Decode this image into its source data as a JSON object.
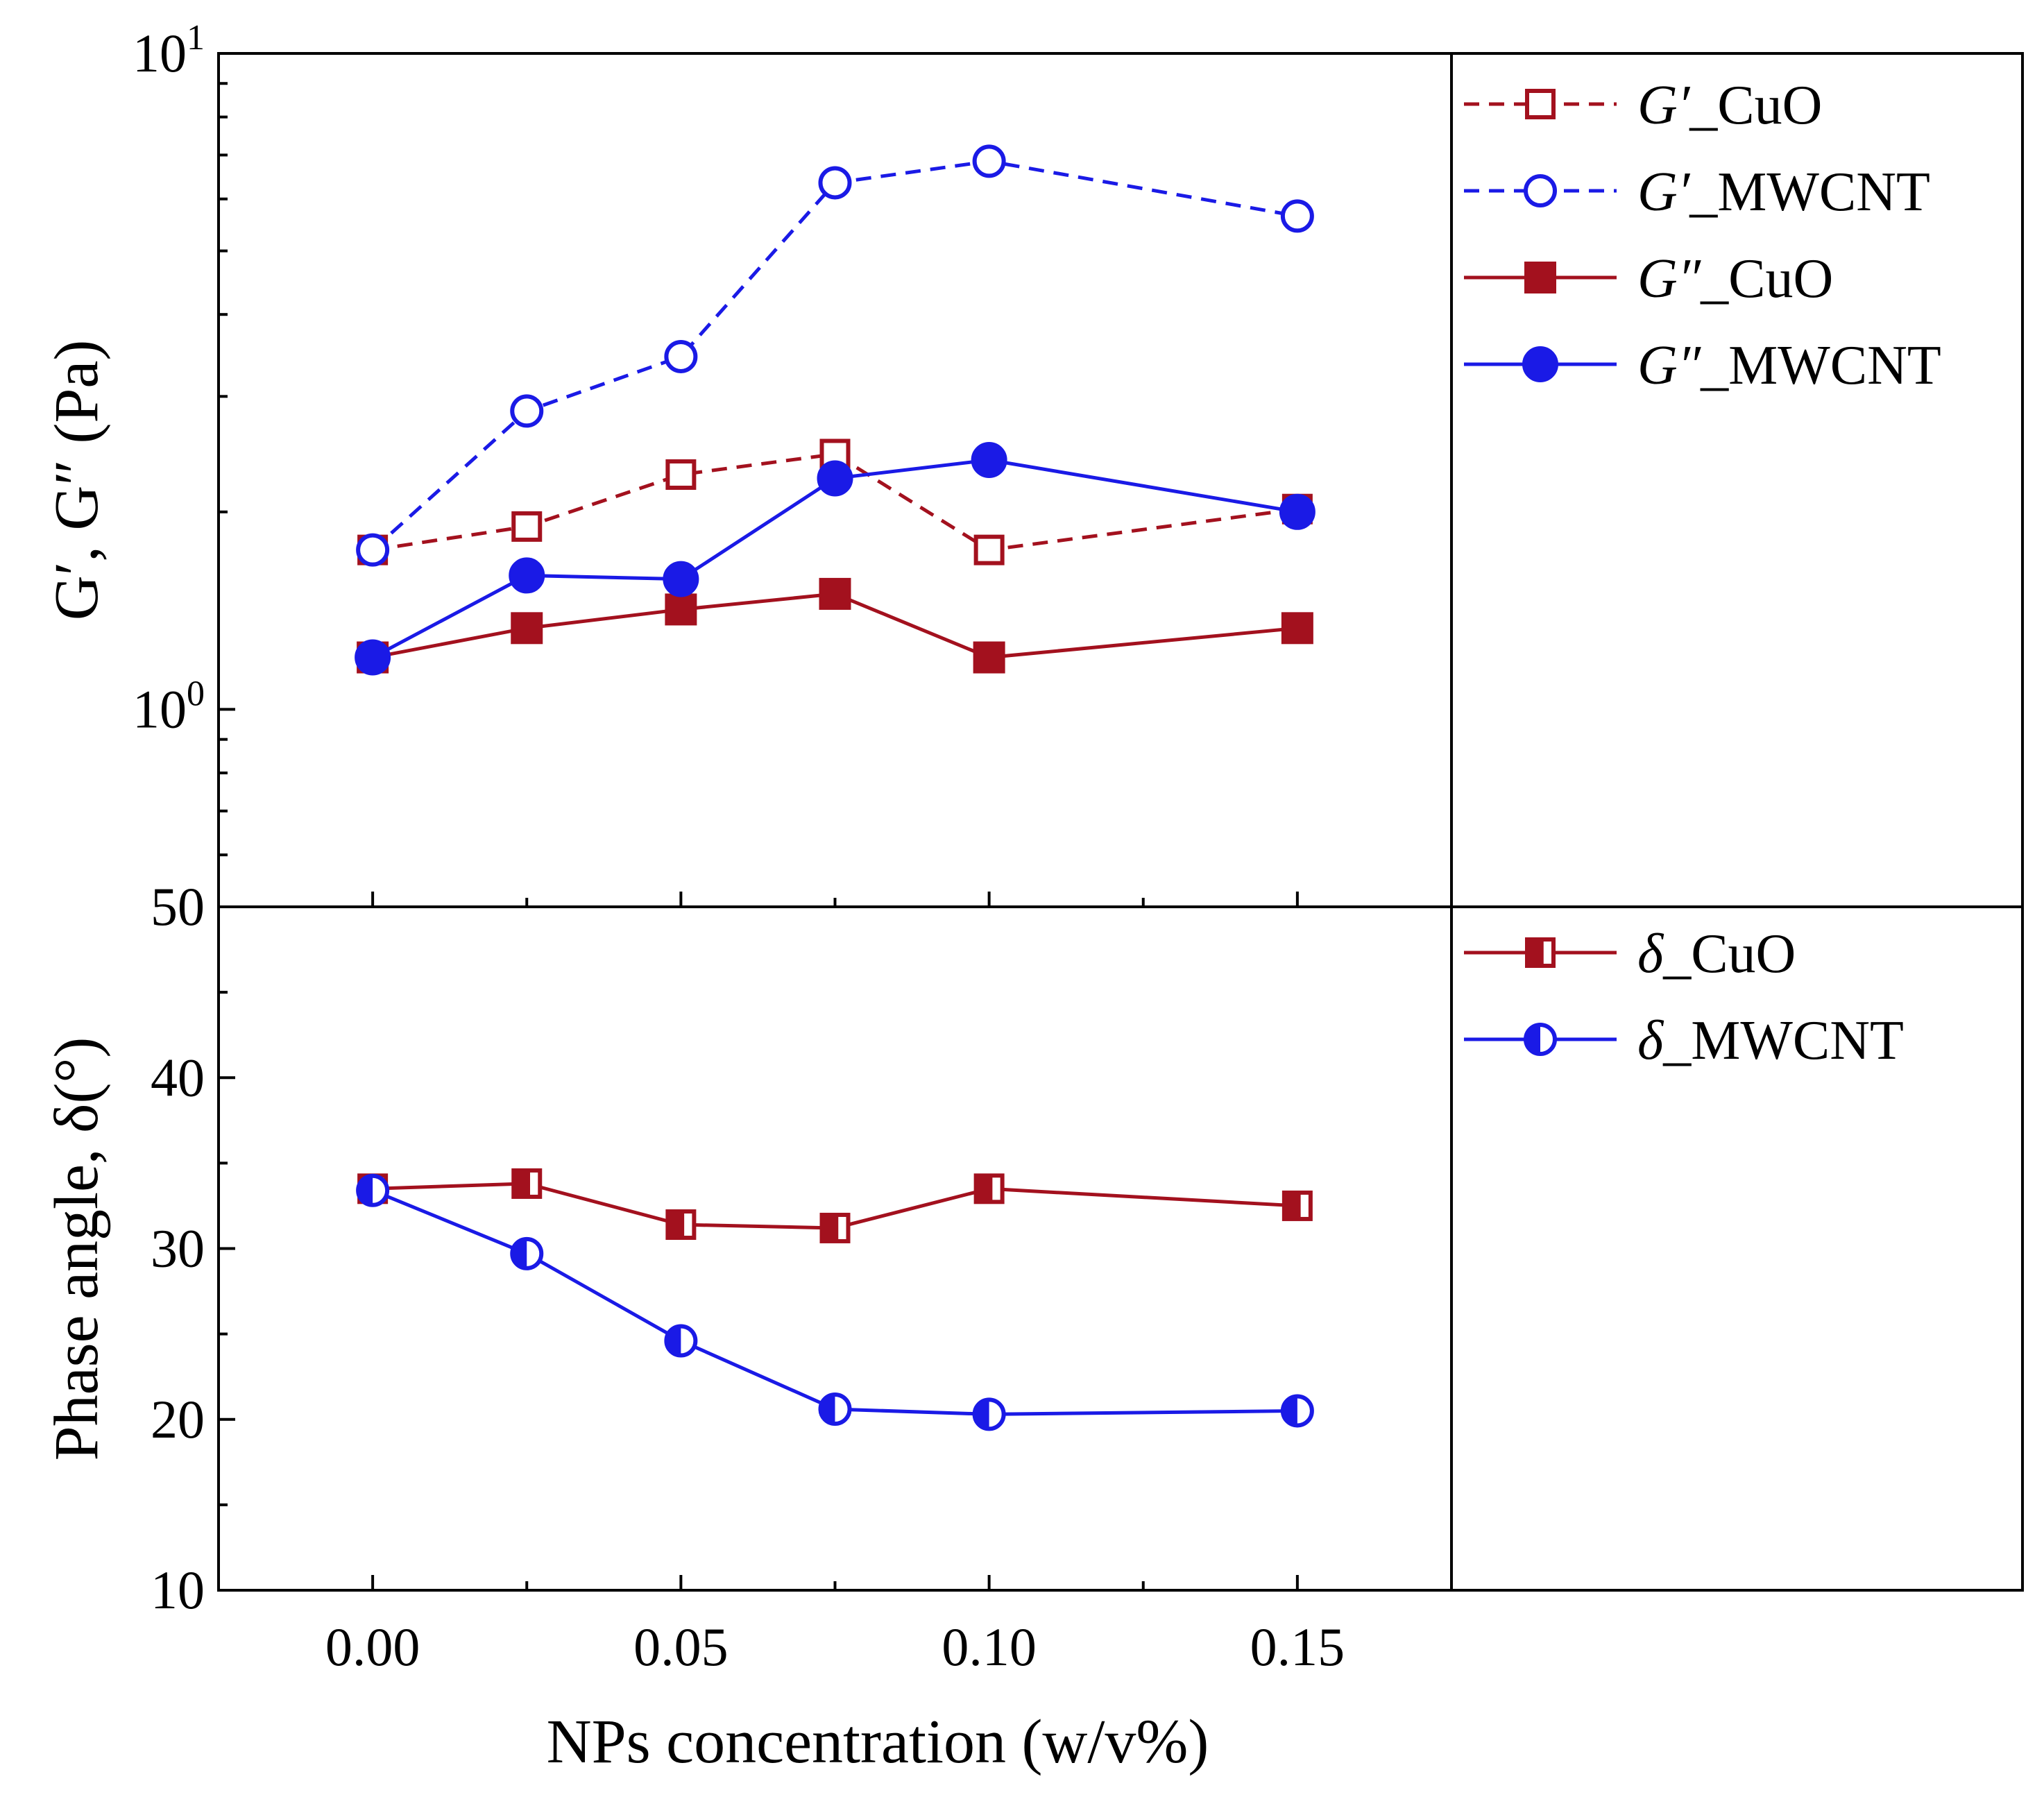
{
  "chart_data": [
    {
      "id": "moduli",
      "type": "line",
      "yscale": "log",
      "ylabel": "G′, G″ (Pa)",
      "ylim": [
        0.5,
        10
      ],
      "yticks": [
        {
          "value": 1,
          "base": "10",
          "exp": "0"
        },
        {
          "value": 10,
          "base": "10",
          "exp": "1"
        }
      ],
      "x": [
        0.0,
        0.025,
        0.05,
        0.075,
        0.1,
        0.15
      ],
      "series": [
        {
          "key": "gp_cuo",
          "name": "G′_CuO",
          "symbol": "G′",
          "suffix": "_CuO",
          "color": "#a3111e",
          "dash": true,
          "marker": "square-open",
          "values": [
            1.75,
            1.9,
            2.28,
            2.45,
            1.75,
            2.02
          ]
        },
        {
          "key": "gp_mwcnt",
          "name": "G′_MWCNT",
          "symbol": "G′",
          "suffix": "_MWCNT",
          "color": "#1a1ae6",
          "dash": true,
          "marker": "circle-open",
          "values": [
            1.75,
            2.85,
            3.45,
            6.35,
            6.85,
            5.65
          ]
        },
        {
          "key": "gpp_cuo",
          "name": "G″_CuO",
          "symbol": "G″",
          "suffix": "_CuO",
          "color": "#a3111e",
          "dash": false,
          "marker": "square-filled",
          "values": [
            1.2,
            1.33,
            1.42,
            1.5,
            1.2,
            1.33
          ]
        },
        {
          "key": "gpp_mwcnt",
          "name": "G″_MWCNT",
          "symbol": "G″",
          "suffix": "_MWCNT",
          "color": "#1a1ae6",
          "dash": false,
          "marker": "circle-filled",
          "values": [
            1.2,
            1.6,
            1.58,
            2.25,
            2.4,
            2.0
          ]
        }
      ]
    },
    {
      "id": "phase",
      "type": "line",
      "yscale": "linear",
      "ylabel": "Phase angle, δ(°)",
      "ylim": [
        10,
        50
      ],
      "yticks": [
        10,
        20,
        30,
        40,
        50
      ],
      "x": [
        0.0,
        0.025,
        0.05,
        0.075,
        0.1,
        0.15
      ],
      "xlabel": "NPs concentration (w/v%)",
      "xlim": [
        -0.025,
        0.175
      ],
      "xticks": [
        "0.00",
        "0.05",
        "0.10",
        "0.15"
      ],
      "series": [
        {
          "key": "d_cuo",
          "name": "δ_CuO",
          "symbol": "δ",
          "suffix": "_CuO",
          "color": "#a3111e",
          "dash": false,
          "marker": "square-half",
          "values": [
            33.5,
            33.8,
            31.4,
            31.2,
            33.5,
            32.5
          ]
        },
        {
          "key": "d_mwcnt",
          "name": "δ_MWCNT",
          "symbol": "δ",
          "suffix": "_MWCNT",
          "color": "#1a1ae6",
          "dash": false,
          "marker": "circle-half",
          "values": [
            33.4,
            29.7,
            24.6,
            20.6,
            20.3,
            20.5
          ]
        }
      ]
    }
  ]
}
